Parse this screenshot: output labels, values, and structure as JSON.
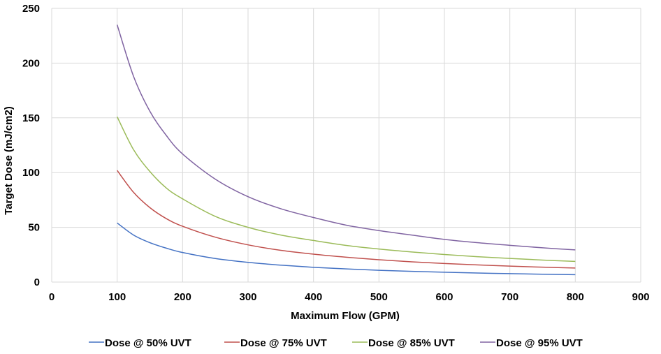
{
  "chart_data": {
    "type": "line",
    "title": "",
    "xlabel": "Maximum Flow (GPM)",
    "ylabel": "Target Dose (mJ/cm2)",
    "xlim": [
      0,
      900
    ],
    "ylim": [
      0,
      250
    ],
    "xticks": [
      0,
      100,
      200,
      300,
      400,
      500,
      600,
      700,
      800,
      900
    ],
    "yticks": [
      0,
      50,
      100,
      150,
      200,
      250
    ],
    "grid": true,
    "legend_position": "bottom",
    "x": [
      100,
      125,
      150,
      175,
      200,
      250,
      300,
      350,
      400,
      450,
      500,
      550,
      600,
      650,
      700,
      750,
      800
    ],
    "series": [
      {
        "name": "Dose @ 50% UVT",
        "color": "#4472C4",
        "values": [
          54,
          43,
          36,
          31,
          27,
          21.5,
          18,
          15.5,
          13.5,
          12,
          10.8,
          9.8,
          9,
          8.3,
          7.7,
          7.2,
          6.8
        ]
      },
      {
        "name": "Dose @ 75% UVT",
        "color": "#C0504D",
        "values": [
          102,
          82,
          68,
          58,
          51,
          41,
          34,
          29,
          25.5,
          22.7,
          20.4,
          18.5,
          17,
          15.7,
          14.6,
          13.6,
          12.8
        ]
      },
      {
        "name": "Dose @ 85% UVT",
        "color": "#9BBB59",
        "values": [
          151,
          121,
          101,
          86,
          76,
          60,
          50,
          43,
          38,
          33.5,
          30.2,
          27.5,
          25.2,
          23.2,
          21.6,
          20.1,
          18.9
        ]
      },
      {
        "name": "Dose @ 95% UVT",
        "color": "#8064A2",
        "values": [
          235,
          188,
          156,
          134,
          117,
          94,
          78,
          67,
          59,
          52,
          47,
          43,
          39,
          36,
          33.6,
          31.3,
          29.4
        ]
      }
    ]
  }
}
